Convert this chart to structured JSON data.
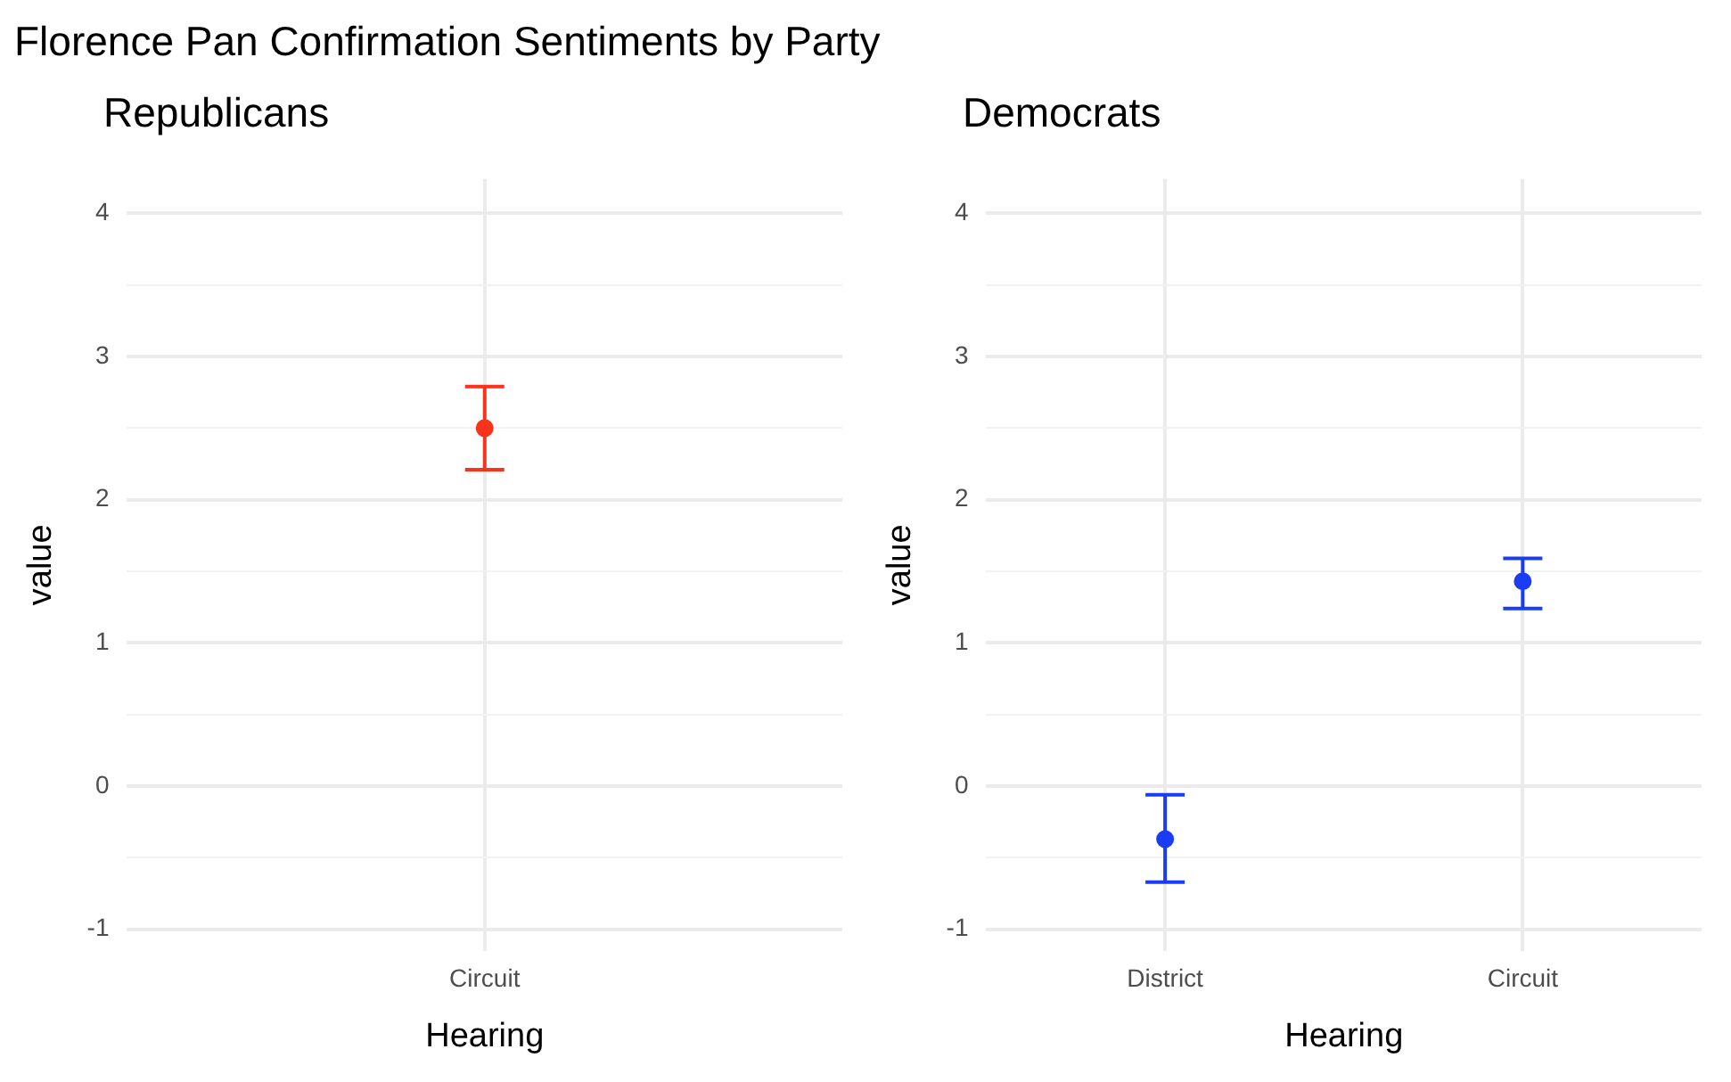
{
  "chart_data": [
    {
      "type": "scatter",
      "title": "Florence Pan Confirmation Sentiments by Party",
      "subtitle": "Republicans",
      "xlabel": "Hearing",
      "ylabel": "value",
      "categories": [
        "Circuit"
      ],
      "series": [
        {
          "color": "#f8331c",
          "values": [
            2.5
          ],
          "errors": [
            [
              2.21,
              2.79
            ]
          ]
        }
      ],
      "ylim": [
        -1.15,
        4.24
      ],
      "yticks": [
        -1,
        {
          "value": -0.5,
          "label": null
        },
        0,
        {
          "value": 0.5,
          "label": null
        },
        1,
        {
          "value": 1.5,
          "label": null
        },
        2,
        {
          "value": 2.5,
          "label": null
        },
        3,
        {
          "value": 3.5,
          "label": null
        },
        4
      ],
      "grid": true,
      "legend": false,
      "marker": "circle"
    },
    {
      "type": "scatter",
      "title": "Democrats",
      "xlabel": "Hearing",
      "ylabel": "value",
      "categories": [
        "District",
        "Circuit"
      ],
      "series": [
        {
          "color": "#1a3cf5",
          "values": [
            -0.37,
            1.43
          ],
          "errors": [
            [
              -0.67,
              -0.06
            ],
            [
              1.24,
              1.59
            ]
          ]
        }
      ],
      "ylim": [
        -1.15,
        4.24
      ],
      "yticks": [
        -1,
        {
          "value": -0.5,
          "label": null
        },
        0,
        {
          "value": 0.5,
          "label": null
        },
        1,
        {
          "value": 1.5,
          "label": null
        },
        2,
        {
          "value": 2.5,
          "label": null
        },
        3,
        {
          "value": 3.5,
          "label": null
        },
        4
      ],
      "grid": true,
      "legend": false,
      "marker": "circle"
    }
  ]
}
